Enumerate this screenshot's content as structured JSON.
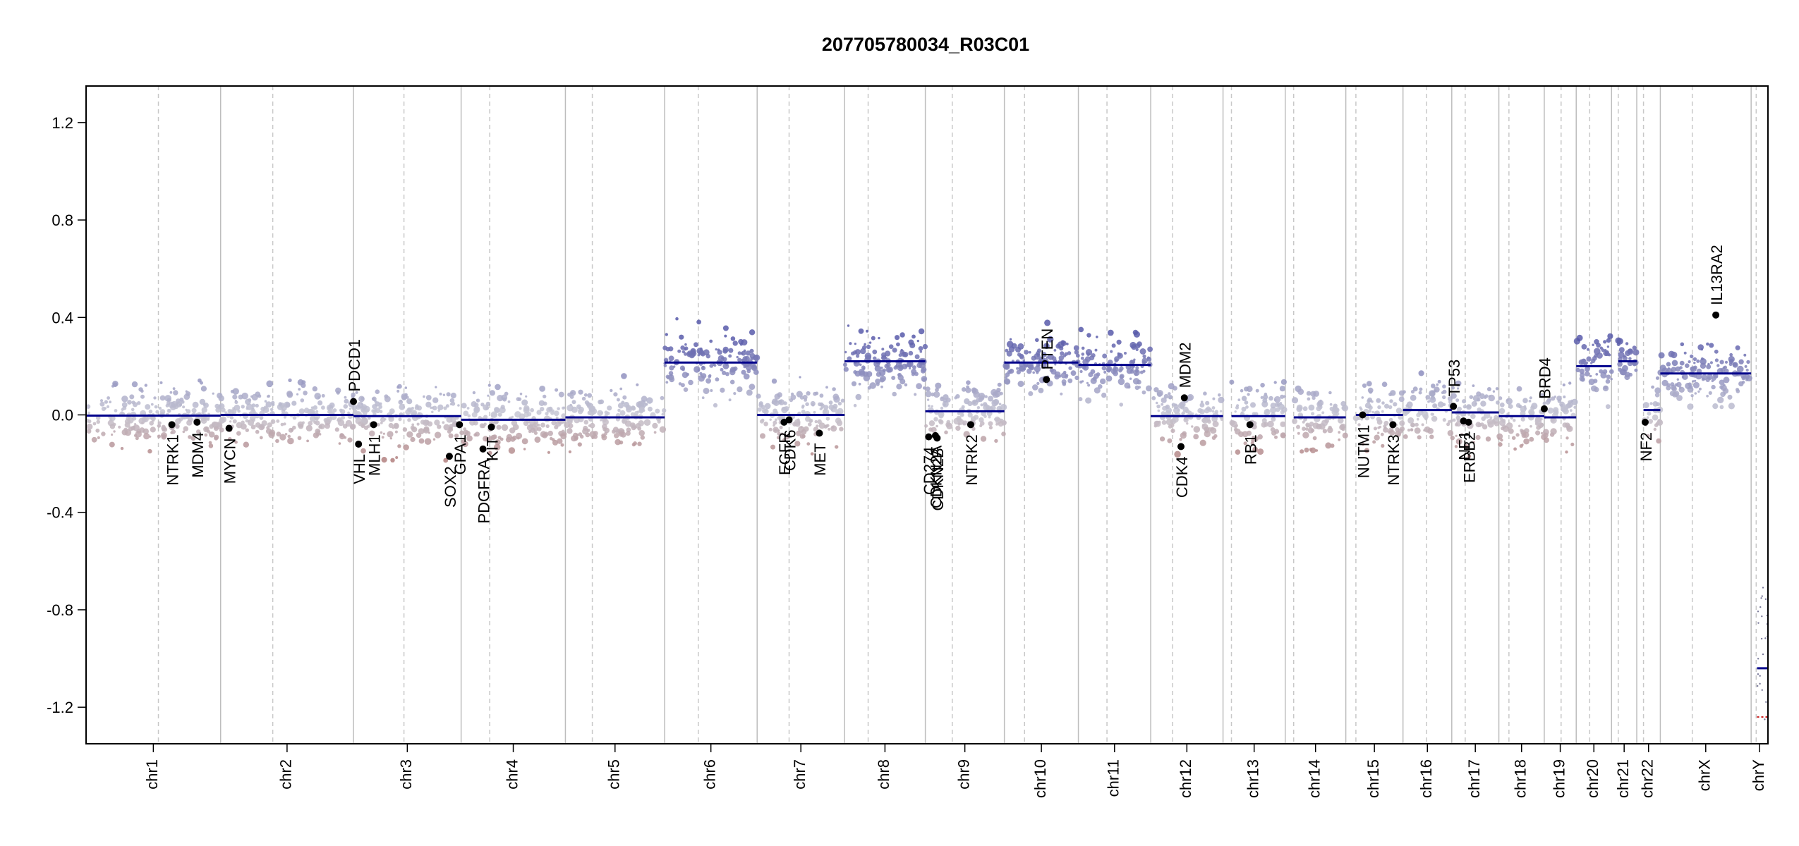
{
  "chart_data": {
    "type": "scatter",
    "title": "207705780034_R03C01",
    "xlabel": "",
    "ylabel": "",
    "ylim": [
      -1.35,
      1.35
    ],
    "yticks": [
      1.2,
      0.8,
      0.4,
      0.0,
      -0.4,
      -0.8,
      -1.2
    ],
    "ytick_labels": [
      "1.2",
      "0.8",
      "0.4",
      "0.0",
      "-0.4",
      "-0.8",
      "-1.2"
    ],
    "colors": {
      "gain": "#5a5ca8",
      "neutral": "#c8c8d2",
      "loss": "#b07a78",
      "segment": "#00008b",
      "grid": "#bdbdbd",
      "axis": "#000000"
    },
    "chromosomes": [
      {
        "name": "chr1",
        "start": 0.0,
        "end": 0.08,
        "centro": 0.043,
        "seg": [
          {
            "s": 0.0,
            "e": 0.08,
            "v": -0.003
          }
        ]
      },
      {
        "name": "chr2",
        "start": 0.08,
        "end": 0.159,
        "centro": 0.111,
        "seg": [
          {
            "s": 0.08,
            "e": 0.159,
            "v": 0.0
          }
        ]
      },
      {
        "name": "chr3",
        "start": 0.159,
        "end": 0.223,
        "centro": 0.189,
        "seg": [
          {
            "s": 0.159,
            "e": 0.223,
            "v": -0.005
          }
        ]
      },
      {
        "name": "chr4",
        "start": 0.223,
        "end": 0.285,
        "centro": 0.24,
        "seg": [
          {
            "s": 0.223,
            "e": 0.285,
            "v": -0.02
          }
        ]
      },
      {
        "name": "chr5",
        "start": 0.285,
        "end": 0.344,
        "centro": 0.301,
        "seg": [
          {
            "s": 0.285,
            "e": 0.344,
            "v": -0.01
          }
        ]
      },
      {
        "name": "chr6",
        "start": 0.344,
        "end": 0.399,
        "centro": 0.364,
        "seg": [
          {
            "s": 0.344,
            "e": 0.399,
            "v": 0.215
          }
        ]
      },
      {
        "name": "chr7",
        "start": 0.399,
        "end": 0.451,
        "centro": 0.418,
        "seg": [
          {
            "s": 0.399,
            "e": 0.451,
            "v": 0.0
          }
        ]
      },
      {
        "name": "chr8",
        "start": 0.451,
        "end": 0.499,
        "centro": 0.465,
        "seg": [
          {
            "s": 0.451,
            "e": 0.499,
            "v": 0.22
          }
        ]
      },
      {
        "name": "chr9",
        "start": 0.499,
        "end": 0.546,
        "centro": 0.515,
        "seg": [
          {
            "s": 0.499,
            "e": 0.546,
            "v": 0.015
          }
        ]
      },
      {
        "name": "chr10",
        "start": 0.546,
        "end": 0.59,
        "centro": 0.558,
        "seg": [
          {
            "s": 0.546,
            "e": 0.59,
            "v": 0.215
          }
        ]
      },
      {
        "name": "chr11",
        "start": 0.59,
        "end": 0.633,
        "centro": 0.607,
        "seg": [
          {
            "s": 0.59,
            "e": 0.633,
            "v": 0.205
          }
        ]
      },
      {
        "name": "chr12",
        "start": 0.633,
        "end": 0.676,
        "centro": 0.646,
        "seg": [
          {
            "s": 0.633,
            "e": 0.676,
            "v": -0.005
          }
        ]
      },
      {
        "name": "chr13",
        "start": 0.676,
        "end": 0.713,
        "centro": 0.681,
        "seg": [
          {
            "s": 0.681,
            "e": 0.713,
            "v": -0.005
          }
        ]
      },
      {
        "name": "chr14",
        "start": 0.713,
        "end": 0.749,
        "centro": 0.718,
        "seg": [
          {
            "s": 0.718,
            "e": 0.749,
            "v": -0.01
          }
        ]
      },
      {
        "name": "chr15",
        "start": 0.749,
        "end": 0.783,
        "centro": 0.755,
        "seg": [
          {
            "s": 0.755,
            "e": 0.783,
            "v": 0.0
          }
        ]
      },
      {
        "name": "chr16",
        "start": 0.783,
        "end": 0.812,
        "centro": 0.797,
        "seg": [
          {
            "s": 0.783,
            "e": 0.812,
            "v": 0.02
          }
        ]
      },
      {
        "name": "chr17",
        "start": 0.812,
        "end": 0.84,
        "centro": 0.82,
        "seg": [
          {
            "s": 0.812,
            "e": 0.84,
            "v": 0.01
          }
        ]
      },
      {
        "name": "chr18",
        "start": 0.84,
        "end": 0.867,
        "centro": 0.846,
        "seg": [
          {
            "s": 0.84,
            "e": 0.867,
            "v": -0.005
          }
        ]
      },
      {
        "name": "chr19",
        "start": 0.867,
        "end": 0.886,
        "centro": 0.877,
        "seg": [
          {
            "s": 0.867,
            "e": 0.886,
            "v": -0.01
          }
        ]
      },
      {
        "name": "chr20",
        "start": 0.886,
        "end": 0.907,
        "centro": 0.894,
        "seg": [
          {
            "s": 0.886,
            "e": 0.907,
            "v": 0.2
          }
        ]
      },
      {
        "name": "chr21",
        "start": 0.907,
        "end": 0.922,
        "centro": 0.911,
        "seg": [
          {
            "s": 0.911,
            "e": 0.922,
            "v": 0.22
          }
        ]
      },
      {
        "name": "chr22",
        "start": 0.922,
        "end": 0.936,
        "centro": 0.926,
        "seg": [
          {
            "s": 0.926,
            "e": 0.936,
            "v": 0.02
          }
        ]
      },
      {
        "name": "chrX",
        "start": 0.936,
        "end": 0.99,
        "centro": 0.955,
        "seg": [
          {
            "s": 0.936,
            "e": 0.99,
            "v": 0.17
          }
        ]
      },
      {
        "name": "chrY",
        "start": 0.99,
        "end": 1.0,
        "centro": 0.993,
        "seg": [
          {
            "s": 0.9935,
            "e": 1.0,
            "v": -1.04
          }
        ]
      }
    ],
    "genes": [
      {
        "name": "NTRK1",
        "x": 0.051,
        "y": -0.04,
        "labelSide": "below"
      },
      {
        "name": "MDM4",
        "x": 0.066,
        "y": -0.03,
        "labelSide": "below"
      },
      {
        "name": "MYCN",
        "x": 0.085,
        "y": -0.055,
        "labelSide": "below"
      },
      {
        "name": "PDCD1",
        "x": 0.159,
        "y": 0.055,
        "labelSide": "above"
      },
      {
        "name": "VHL",
        "x": 0.162,
        "y": -0.12,
        "labelSide": "below"
      },
      {
        "name": "MLH1",
        "x": 0.171,
        "y": -0.04,
        "labelSide": "below"
      },
      {
        "name": "SOX2",
        "x": 0.216,
        "y": -0.17,
        "labelSide": "below"
      },
      {
        "name": "GPA1",
        "x": 0.222,
        "y": -0.04,
        "labelSide": "below"
      },
      {
        "name": "PDGFRA",
        "x": 0.236,
        "y": -0.14,
        "labelSide": "below"
      },
      {
        "name": "KIT",
        "x": 0.241,
        "y": -0.05,
        "labelSide": "below"
      },
      {
        "name": "EGFR",
        "x": 0.415,
        "y": -0.03,
        "labelSide": "below"
      },
      {
        "name": "CDK6",
        "x": 0.418,
        "y": -0.02,
        "labelSide": "below"
      },
      {
        "name": "MET",
        "x": 0.436,
        "y": -0.075,
        "labelSide": "below"
      },
      {
        "name": "CD274",
        "x": 0.501,
        "y": -0.09,
        "labelSide": "below"
      },
      {
        "name": "CDKN2A",
        "x": 0.505,
        "y": -0.085,
        "labelSide": "below"
      },
      {
        "name": "CDKN2B",
        "x": 0.506,
        "y": -0.095,
        "labelSide": "below"
      },
      {
        "name": "NTRK2",
        "x": 0.526,
        "y": -0.04,
        "labelSide": "below"
      },
      {
        "name": "PTEN",
        "x": 0.571,
        "y": 0.145,
        "labelSide": "above"
      },
      {
        "name": "MDM2",
        "x": 0.653,
        "y": 0.07,
        "labelSide": "above"
      },
      {
        "name": "CDK4",
        "x": 0.651,
        "y": -0.13,
        "labelSide": "below"
      },
      {
        "name": "RB1",
        "x": 0.692,
        "y": -0.04,
        "labelSide": "below"
      },
      {
        "name": "NUTM1",
        "x": 0.759,
        "y": 0.0,
        "labelSide": "below"
      },
      {
        "name": "NTRK3",
        "x": 0.777,
        "y": -0.04,
        "labelSide": "below"
      },
      {
        "name": "TP53",
        "x": 0.813,
        "y": 0.035,
        "labelSide": "above"
      },
      {
        "name": "NF1",
        "x": 0.819,
        "y": -0.025,
        "labelSide": "below"
      },
      {
        "name": "ERBB2",
        "x": 0.822,
        "y": -0.03,
        "labelSide": "below"
      },
      {
        "name": "BRD4",
        "x": 0.867,
        "y": 0.025,
        "labelSide": "above"
      },
      {
        "name": "NF2",
        "x": 0.927,
        "y": -0.03,
        "labelSide": "below"
      },
      {
        "name": "IL13RA2",
        "x": 0.969,
        "y": 0.41,
        "labelSide": "above"
      }
    ]
  }
}
